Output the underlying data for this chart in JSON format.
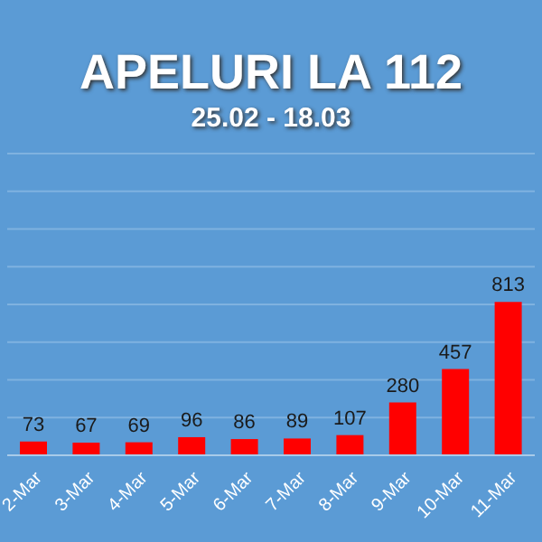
{
  "chart_data": {
    "type": "bar",
    "title": "APELURI LA 112",
    "subtitle": "25.02 - 18.03",
    "categories": [
      "2-Mar",
      "3-Mar",
      "4-Mar",
      "5-Mar",
      "6-Mar",
      "7-Mar",
      "8-Mar",
      "9-Mar",
      "10-Mar",
      "11-Mar"
    ],
    "values": [
      73,
      67,
      69,
      96,
      86,
      89,
      107,
      280,
      457,
      813
    ],
    "color": "#ff0000",
    "data_labels": true,
    "grid": "y",
    "tick_labels": "x",
    "ylim": [
      0,
      1600
    ],
    "yticks": [
      {
        "value": 0,
        "label": null
      },
      {
        "value": 200,
        "label": null
      },
      {
        "value": 400,
        "label": null
      },
      {
        "value": 600,
        "label": null
      },
      {
        "value": 800,
        "label": null
      },
      {
        "value": 1000,
        "label": null
      },
      {
        "value": 1200,
        "label": null
      },
      {
        "value": 1400,
        "label": null
      },
      {
        "value": 1600,
        "label": null
      }
    ]
  }
}
